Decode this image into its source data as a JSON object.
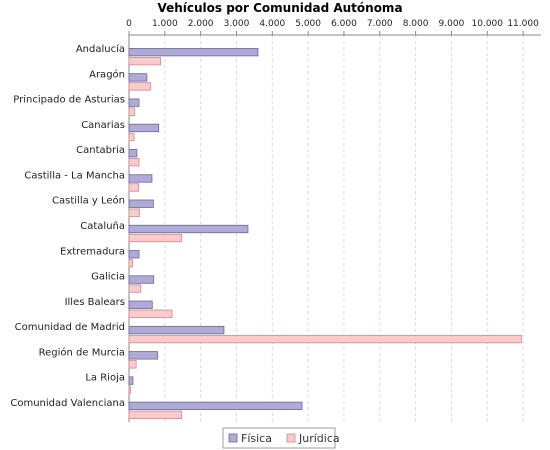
{
  "chart_data": {
    "type": "bar",
    "orientation": "horizontal",
    "title": "Vehículos por Comunidad Autónoma",
    "xlabel": "",
    "ylabel": "",
    "xlim": [
      0,
      11500
    ],
    "x_ticks": [
      0,
      1000,
      2000,
      3000,
      4000,
      5000,
      6000,
      7000,
      8000,
      9000,
      10000,
      11000
    ],
    "x_tick_labels": [
      "0",
      "1.000",
      "2.000",
      "3.000",
      "4.000",
      "5.000",
      "6.000",
      "7.000",
      "8.000",
      "9.000",
      "10.000",
      "11.000"
    ],
    "x_axis_position": "top",
    "grid": "vertical-dashed",
    "legend_position": "bottom-center",
    "categories": [
      "Andalucía",
      "Aragón",
      "Principado de Asturias",
      "Canarias",
      "Cantabria",
      "Castilla - La Mancha",
      "Castilla y León",
      "Cataluña",
      "Extremadura",
      "Galicia",
      "Illes Balears",
      "Comunidad de Madrid",
      "Región de Murcia",
      "La Rioja",
      "Comunidad Valenciana"
    ],
    "series": [
      {
        "name": "Física",
        "color": "#b0aad6",
        "values": [
          3600,
          500,
          280,
          830,
          220,
          640,
          680,
          3320,
          280,
          690,
          650,
          2650,
          800,
          110,
          4830
        ]
      },
      {
        "name": "Jurídica",
        "color": "#fbcaca",
        "values": [
          880,
          600,
          160,
          140,
          280,
          270,
          290,
          1470,
          100,
          330,
          1200,
          10950,
          200,
          40,
          1470
        ]
      }
    ]
  }
}
